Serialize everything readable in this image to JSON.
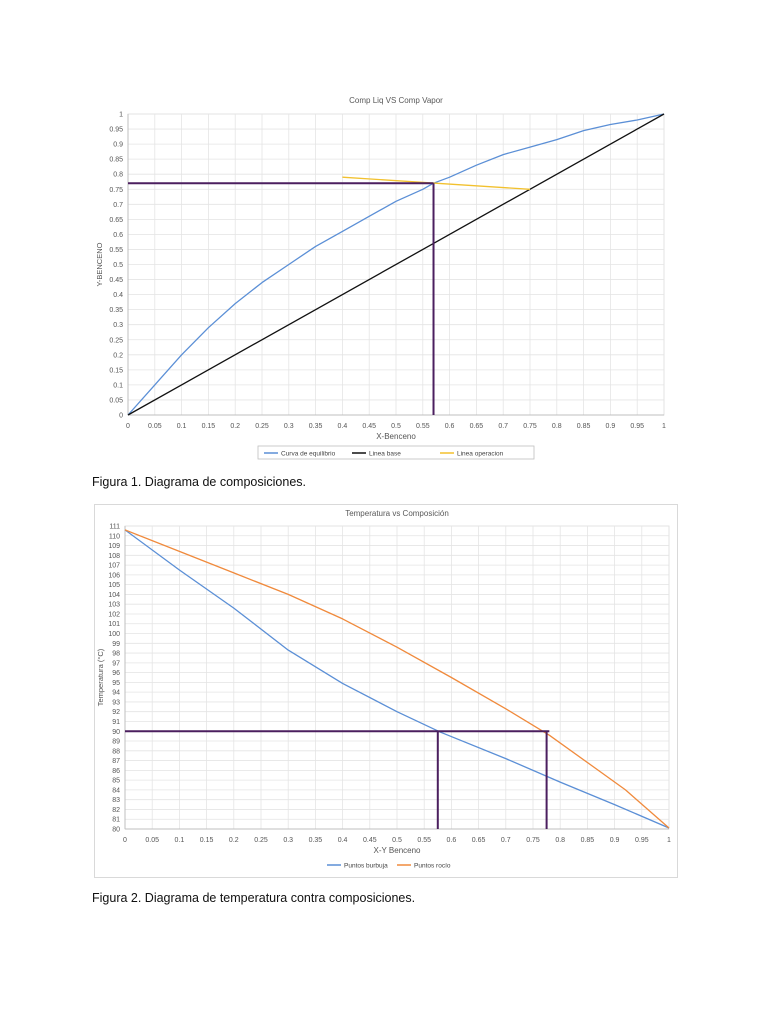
{
  "chart_data": [
    {
      "type": "line",
      "title": "Comp Liq VS Comp Vapor",
      "xlabel": "X-Benceno",
      "ylabel": "Y-BENCENO",
      "xlim": [
        0,
        1
      ],
      "ylim": [
        0,
        1
      ],
      "x_ticks": [
        "0",
        "0.05",
        "0.1",
        "0.15",
        "0.2",
        "0.25",
        "0.3",
        "0.35",
        "0.4",
        "0.45",
        "0.5",
        "0.55",
        "0.6",
        "0.65",
        "0.7",
        "0.75",
        "0.8",
        "0.85",
        "0.9",
        "0.95",
        "1"
      ],
      "y_ticks": [
        "0",
        "0.05",
        "0.1",
        "0.15",
        "0.2",
        "0.25",
        "0.3",
        "0.35",
        "0.4",
        "0.45",
        "0.5",
        "0.55",
        "0.6",
        "0.65",
        "0.7",
        "0.75",
        "0.8",
        "0.85",
        "0.9",
        "0.95",
        "1"
      ],
      "grid": true,
      "legend_position": "bottom",
      "series": [
        {
          "name": "Curva de equilibrio",
          "color": "#5b8fd6",
          "x": [
            0,
            0.05,
            0.1,
            0.15,
            0.2,
            0.25,
            0.3,
            0.35,
            0.4,
            0.45,
            0.5,
            0.55,
            0.57,
            0.6,
            0.65,
            0.7,
            0.75,
            0.8,
            0.85,
            0.9,
            0.95,
            1
          ],
          "y": [
            0,
            0.1,
            0.2,
            0.29,
            0.37,
            0.44,
            0.5,
            0.56,
            0.61,
            0.66,
            0.71,
            0.75,
            0.77,
            0.79,
            0.83,
            0.865,
            0.89,
            0.915,
            0.945,
            0.965,
            0.98,
            1
          ]
        },
        {
          "name": "Linea base",
          "color": "#111111",
          "x": [
            0,
            1
          ],
          "y": [
            0,
            1
          ]
        },
        {
          "name": "Linea operacion",
          "color": "#f2c12e",
          "x": [
            0.4,
            0.75
          ],
          "y": [
            0.79,
            0.75
          ]
        }
      ],
      "annotations": {
        "color": "#4b1f5f",
        "lines": [
          {
            "x": [
              0,
              0.57
            ],
            "y": [
              0.77,
              0.77
            ]
          },
          {
            "x": [
              0.57,
              0.57
            ],
            "y": [
              0.77,
              0
            ]
          }
        ]
      }
    },
    {
      "type": "line",
      "title": "Temperatura vs Composición",
      "xlabel": "X-Y Benceno",
      "ylabel": "Temperatura (°C)",
      "xlim": [
        0,
        1
      ],
      "ylim": [
        80,
        111
      ],
      "x_ticks": [
        "0",
        "0.05",
        "0.1",
        "0.15",
        "0.2",
        "0.25",
        "0.3",
        "0.35",
        "0.4",
        "0.45",
        "0.5",
        "0.55",
        "0.6",
        "0.65",
        "0.7",
        "0.75",
        "0.8",
        "0.85",
        "0.9",
        "0.95",
        "1"
      ],
      "y_ticks": [
        "80",
        "81",
        "82",
        "83",
        "84",
        "85",
        "86",
        "87",
        "88",
        "89",
        "90",
        "91",
        "92",
        "93",
        "94",
        "95",
        "96",
        "97",
        "98",
        "99",
        "100",
        "101",
        "102",
        "103",
        "104",
        "105",
        "106",
        "107",
        "108",
        "109",
        "110",
        "111"
      ],
      "grid": true,
      "legend_position": "bottom",
      "series": [
        {
          "name": "Puntos burbuja",
          "color": "#5b8fd6",
          "x": [
            0,
            0.1,
            0.2,
            0.3,
            0.4,
            0.5,
            0.58,
            0.7,
            0.8,
            0.9,
            1
          ],
          "y": [
            110.6,
            106.5,
            102.6,
            98.3,
            94.9,
            92.0,
            89.9,
            87.2,
            84.8,
            82.5,
            80.1
          ]
        },
        {
          "name": "Puntos rocío",
          "color": "#f08a3c",
          "x": [
            0,
            0.1,
            0.2,
            0.3,
            0.4,
            0.5,
            0.6,
            0.7,
            0.78,
            0.85,
            0.92,
            1
          ],
          "y": [
            110.6,
            108.4,
            106.2,
            104.0,
            101.5,
            98.6,
            95.5,
            92.3,
            89.6,
            86.8,
            84.0,
            80.1
          ]
        }
      ],
      "annotations": {
        "color": "#4b1f5f",
        "lines": [
          {
            "x": [
              0,
              0.78
            ],
            "y": [
              90,
              90
            ]
          },
          {
            "x": [
              0.575,
              0.575
            ],
            "y": [
              90,
              80
            ]
          },
          {
            "x": [
              0.775,
              0.775
            ],
            "y": [
              90,
              80
            ]
          }
        ]
      }
    }
  ],
  "captions": {
    "figure1": "Figura 1. Diagrama de composiciones.",
    "figure2": "Figura 2. Diagrama de temperatura contra composiciones."
  }
}
